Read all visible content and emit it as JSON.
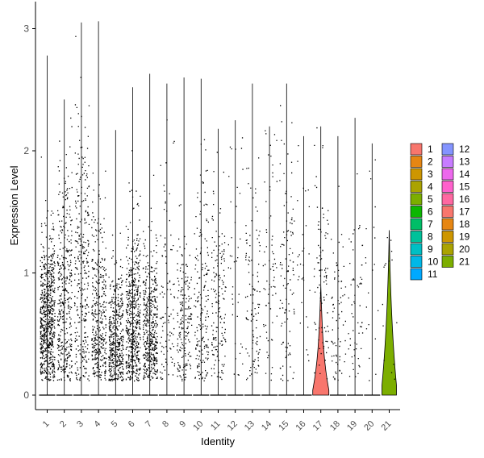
{
  "chart_data": {
    "type": "violin",
    "title": "",
    "xlabel": "Identity",
    "ylabel": "Expression Level",
    "ylim": [
      -0.13,
      3.13
    ],
    "yticks": [
      0,
      1,
      2,
      3
    ],
    "grid": false,
    "legend_position": "right",
    "categories": [
      "1",
      "2",
      "3",
      "4",
      "5",
      "6",
      "7",
      "8",
      "9",
      "10",
      "11",
      "12",
      "13",
      "14",
      "15",
      "16",
      "17",
      "18",
      "19",
      "20",
      "21"
    ],
    "colors": [
      "#F8766D",
      "#E68613",
      "#CD9600",
      "#ABA300",
      "#7CAE00",
      "#0CB702",
      "#00BE67",
      "#00C19A",
      "#00BFC4",
      "#00B8E7",
      "#00A9FF",
      "#8494FF",
      "#C77CFF",
      "#ED68ED",
      "#FF61CC",
      "#FF68A1",
      "#F8766D",
      "#E68613",
      "#CD9600",
      "#ABA300",
      "#7CAE00"
    ],
    "violins": [
      {
        "category": "1",
        "max": 2.78,
        "violin_peak_density": 0.0
      },
      {
        "category": "2",
        "max": 2.42,
        "violin_peak_density": 0.0
      },
      {
        "category": "3",
        "max": 3.05,
        "violin_peak_density": 0.0
      },
      {
        "category": "4",
        "max": 3.06,
        "violin_peak_density": 0.0
      },
      {
        "category": "5",
        "max": 2.17,
        "violin_peak_density": 0.0
      },
      {
        "category": "6",
        "max": 2.52,
        "violin_peak_density": 0.0
      },
      {
        "category": "7",
        "max": 2.63,
        "violin_peak_density": 0.0
      },
      {
        "category": "8",
        "max": 2.55,
        "violin_peak_density": 0.0
      },
      {
        "category": "9",
        "max": 2.6,
        "violin_peak_density": 0.0
      },
      {
        "category": "10",
        "max": 2.59,
        "violin_peak_density": 0.0
      },
      {
        "category": "11",
        "max": 2.18,
        "violin_peak_density": 0.0
      },
      {
        "category": "12",
        "max": 2.25,
        "violin_peak_density": 0.0
      },
      {
        "category": "13",
        "max": 2.55,
        "violin_peak_density": 0.0
      },
      {
        "category": "14",
        "max": 2.2,
        "violin_peak_density": 0.0
      },
      {
        "category": "15",
        "max": 2.55,
        "violin_peak_density": 0.0
      },
      {
        "category": "16",
        "max": 2.12,
        "violin_peak_density": 0.0
      },
      {
        "category": "17",
        "max": 2.2,
        "violin_peak_density": 0.55
      },
      {
        "category": "18",
        "max": 2.12,
        "violin_peak_density": 0.0
      },
      {
        "category": "19",
        "max": 2.27,
        "violin_peak_density": 0.0
      },
      {
        "category": "20",
        "max": 2.06,
        "violin_peak_density": 0.0
      },
      {
        "category": "21",
        "max": 1.35,
        "violin_peak_density": 0.62
      }
    ],
    "legend": {
      "columns": [
        [
          "1",
          "2",
          "3",
          "4",
          "5",
          "6",
          "7",
          "8",
          "9",
          "10",
          "11"
        ],
        [
          "12",
          "13",
          "14",
          "15",
          "16",
          "17",
          "18",
          "19",
          "20",
          "21"
        ]
      ]
    }
  }
}
